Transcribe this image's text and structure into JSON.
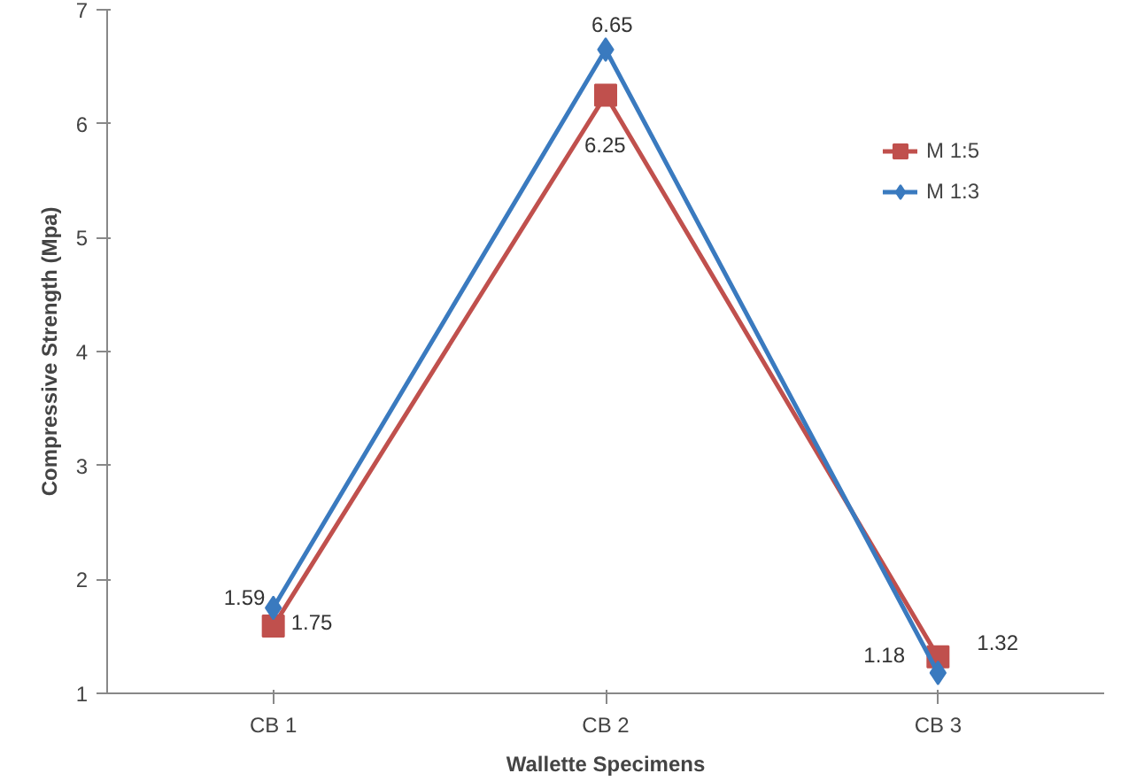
{
  "chart_data": {
    "type": "line",
    "xlabel": "Wallette Specimens",
    "ylabel": "Compressive Strength (Mpa)",
    "categories": [
      "CB 1",
      "CB 2",
      "CB 3"
    ],
    "series": [
      {
        "name": "M 1:5",
        "color": "#c0504d",
        "values": [
          1.59,
          6.25,
          1.32
        ],
        "marker": "square"
      },
      {
        "name": "M 1:3",
        "color": "#3a7abf",
        "values": [
          1.75,
          6.65,
          1.18
        ],
        "marker": "diamond"
      }
    ],
    "ylim": [
      1,
      7
    ],
    "yticks": [
      1,
      2,
      3,
      4,
      5,
      6,
      7
    ],
    "grid": false,
    "legend": "right",
    "data_labels": true
  }
}
